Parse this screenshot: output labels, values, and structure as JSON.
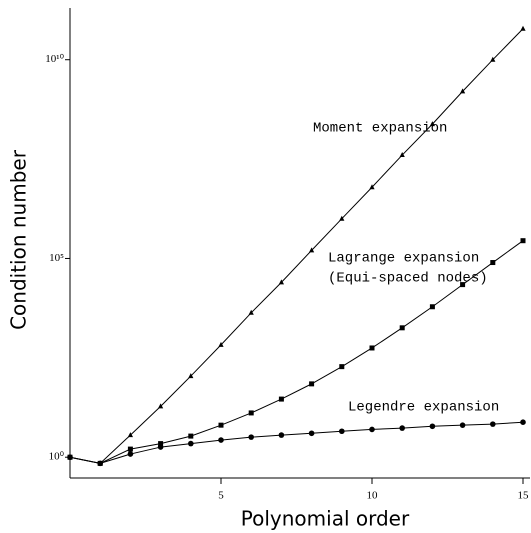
{
  "chart_data": {
    "type": "line",
    "xlabel": "Polynomial order",
    "ylabel": "Condition number",
    "x": [
      0,
      1,
      2,
      3,
      4,
      5,
      6,
      7,
      8,
      9,
      10,
      11,
      12,
      13,
      14,
      15
    ],
    "series": [
      {
        "name": "Moment expansion",
        "color": "#000000",
        "marker": "triangle",
        "values": [
          1,
          0.7,
          3.6,
          19,
          110,
          670,
          4300,
          25000,
          160000,
          1000000,
          6200000,
          40000000,
          240000000,
          1600000000,
          10000000000,
          60000000000
        ]
      },
      {
        "name": "Lagrange expansion",
        "color": "#000000",
        "marker": "square",
        "values": [
          1,
          0.7,
          1.6,
          2.2,
          3.4,
          6.4,
          13,
          29,
          70,
          190,
          560,
          1800,
          6100,
          22000,
          79000,
          280000
        ]
      },
      {
        "name": "Legendre expansion",
        "color": "#000000",
        "marker": "circle",
        "values": [
          1,
          0.7,
          1.2,
          1.8,
          2.2,
          2.7,
          3.2,
          3.6,
          4,
          4.5,
          5,
          5.4,
          6,
          6.4,
          6.8,
          7.6
        ]
      }
    ],
    "annotations": [
      "Moment expansion",
      "Lagrange expansion",
      "(Equi-spaced nodes)",
      "Legendre expansion"
    ],
    "xlim": [
      0,
      15
    ],
    "xticks": [
      5,
      10,
      15
    ],
    "ylim": [
      0.3,
      200000000000
    ],
    "ylog": true,
    "yticks": [
      {
        "value": 1,
        "label": "10⁰"
      },
      {
        "value": 100000,
        "label": "10⁵"
      },
      {
        "value": 10000000000,
        "label": "10¹⁰"
      }
    ]
  }
}
